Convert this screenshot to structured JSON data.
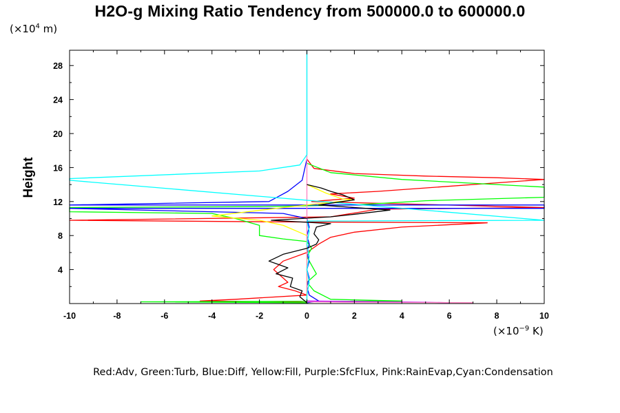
{
  "title": "H2O-g Mixing Ratio Tendency from 500000.0 to 600000.0",
  "y_unit_prefix": "(×10",
  "y_unit_exp": "4",
  "y_unit_suffix": " m)",
  "x_unit_prefix": "(×10",
  "x_unit_exp": "−9",
  "x_unit_suffix": " K)",
  "ylabel": "Height",
  "legend_text": "Red:Adv, Green:Turb, Blue:Diff, Yellow:Fill, Purple:SfcFlux, Pink:RainEvap,Cyan:Condensation",
  "chart_data": {
    "type": "line",
    "xlabel": "",
    "ylabel": "Height",
    "xlim": [
      -10,
      10
    ],
    "ylim": [
      0,
      29.8
    ],
    "x_ticks": [
      -10,
      -8,
      -6,
      -4,
      -2,
      0,
      2,
      4,
      6,
      8,
      10
    ],
    "x_tick_labels": [
      "-10",
      "-8",
      "-6",
      "-4",
      "-2",
      "0",
      "2",
      "4",
      "6",
      "8",
      "10"
    ],
    "y_ticks": [
      4,
      8,
      12,
      16,
      20,
      24,
      28
    ],
    "y_tick_labels": [
      "4",
      "8",
      "12",
      "16",
      "20",
      "24",
      "28"
    ],
    "grid": false,
    "series": [
      {
        "name": "Adv",
        "color": "#ff0000",
        "points": [
          [
            0,
            17.0
          ],
          [
            0.3,
            15.9
          ],
          [
            2,
            15.3
          ],
          [
            5,
            15.0
          ],
          [
            8,
            14.8
          ],
          [
            10,
            14.6
          ],
          [
            10,
            14.6
          ],
          [
            3,
            13.2
          ],
          [
            1,
            12.9
          ],
          [
            2,
            12.4
          ],
          [
            0.2,
            12.0
          ],
          [
            10,
            11.3
          ],
          [
            3,
            11.1
          ],
          [
            1,
            10.2
          ],
          [
            -10,
            9.8
          ],
          [
            -1,
            9.6
          ],
          [
            7.6,
            9.5
          ],
          [
            4,
            9.0
          ],
          [
            2,
            8.4
          ],
          [
            1,
            7.8
          ],
          [
            0.5,
            7.0
          ],
          [
            0,
            6.0
          ],
          [
            -1,
            5.0
          ],
          [
            -1.4,
            4.0
          ],
          [
            -1,
            3.0
          ],
          [
            -0.8,
            2.5
          ],
          [
            -1.2,
            2.0
          ],
          [
            -0.5,
            1.5
          ],
          [
            0,
            1.0
          ],
          [
            -3,
            0.5
          ],
          [
            -4.5,
            0.3
          ],
          [
            -0.5,
            0.2
          ],
          [
            0,
            0.1
          ]
        ]
      },
      {
        "name": "Turb",
        "color": "#00ff00",
        "points": [
          [
            0,
            16.5
          ],
          [
            1,
            15.4
          ],
          [
            4,
            14.6
          ],
          [
            8,
            14.0
          ],
          [
            10,
            13.7
          ],
          [
            10,
            12.5
          ],
          [
            5,
            12.1
          ],
          [
            2,
            11.6
          ],
          [
            -2,
            11.4
          ],
          [
            -10,
            11.3
          ],
          [
            -10,
            10.8
          ],
          [
            -4,
            10.6
          ],
          [
            -3,
            10.0
          ],
          [
            -2,
            9.2
          ],
          [
            -2,
            8.0
          ],
          [
            -1,
            7.6
          ],
          [
            0,
            7.3
          ],
          [
            0.2,
            6.5
          ],
          [
            0,
            5.5
          ],
          [
            0.2,
            4.5
          ],
          [
            0.4,
            3.5
          ],
          [
            0,
            2.5
          ],
          [
            0.3,
            1.5
          ],
          [
            1,
            0.5
          ],
          [
            4,
            0.3
          ],
          [
            -7,
            0.2
          ],
          [
            0,
            0.1
          ]
        ]
      },
      {
        "name": "Diff",
        "color": "#0000ff",
        "points": [
          [
            0,
            17.0
          ],
          [
            -0.2,
            14.5
          ],
          [
            -0.8,
            13.2
          ],
          [
            -1.2,
            12.6
          ],
          [
            -1.6,
            12.0
          ],
          [
            -10,
            11.6
          ],
          [
            10,
            11.6
          ],
          [
            10,
            11.2
          ],
          [
            -10,
            11.2
          ],
          [
            -1,
            10.6
          ],
          [
            0,
            10.0
          ],
          [
            0.1,
            9.0
          ],
          [
            0,
            8.0
          ],
          [
            0.1,
            7.0
          ],
          [
            0,
            6.0
          ],
          [
            0.1,
            5.0
          ],
          [
            0,
            4.0
          ],
          [
            0.1,
            3.0
          ],
          [
            0,
            2.0
          ],
          [
            0.1,
            1.0
          ],
          [
            0.5,
            0.3
          ],
          [
            0,
            0.1
          ]
        ]
      },
      {
        "name": "Fill",
        "color": "#ffff00",
        "points": [
          [
            0,
            14.0
          ],
          [
            0.8,
            13.0
          ],
          [
            1.5,
            12.3
          ],
          [
            2,
            12.2
          ],
          [
            -1,
            11.3
          ],
          [
            -4,
            10.3
          ],
          [
            -2,
            9.8
          ],
          [
            -1,
            9.2
          ],
          [
            0,
            8.0
          ],
          [
            0,
            7.0
          ],
          [
            0,
            0.1
          ]
        ]
      },
      {
        "name": "SfcFlux",
        "color": "#c000ff",
        "points": [
          [
            0,
            0.3
          ],
          [
            2,
            0.25
          ],
          [
            5,
            0.15
          ],
          [
            6,
            0.1
          ]
        ]
      },
      {
        "name": "RainEvap",
        "color": "#ff7fbf",
        "points": [
          [
            0,
            29.8
          ],
          [
            0,
            0.1
          ],
          [
            0,
            0.2
          ],
          [
            1.5,
            0.15
          ],
          [
            5,
            0.12
          ],
          [
            7,
            0.1
          ]
        ]
      },
      {
        "name": "Condensation",
        "color": "#00ffff",
        "points": [
          [
            0,
            29.8
          ],
          [
            0,
            17.5
          ],
          [
            -0.3,
            16.3
          ],
          [
            -2,
            15.6
          ],
          [
            -10,
            14.7
          ],
          [
            -10,
            14.5
          ],
          [
            10,
            9.8
          ],
          [
            0,
            9.7
          ],
          [
            0.1,
            8.5
          ],
          [
            0,
            7.0
          ],
          [
            0.1,
            5.5
          ],
          [
            0,
            4.0
          ],
          [
            0.1,
            2.5
          ],
          [
            0,
            1.0
          ],
          [
            0,
            0.1
          ]
        ]
      },
      {
        "name": "",
        "color": "#000000",
        "points": [
          [
            0,
            14.0
          ],
          [
            0.6,
            13.6
          ],
          [
            1.0,
            13.2
          ],
          [
            1.5,
            12.8
          ],
          [
            2.0,
            12.2
          ],
          [
            0.5,
            11.6
          ],
          [
            3.5,
            11.0
          ],
          [
            2.0,
            10.5
          ],
          [
            1.0,
            10.2
          ],
          [
            -1.5,
            9.8
          ],
          [
            1.0,
            9.4
          ],
          [
            0.4,
            9.0
          ],
          [
            0.3,
            8.2
          ],
          [
            0.5,
            7.5
          ],
          [
            0.4,
            7.0
          ],
          [
            0,
            6.5
          ],
          [
            -1.0,
            5.8
          ],
          [
            -1.6,
            5.0
          ],
          [
            -0.8,
            4.2
          ],
          [
            -1.3,
            3.5
          ],
          [
            -0.6,
            3.0
          ],
          [
            -0.7,
            2.0
          ],
          [
            -0.2,
            1.5
          ],
          [
            -0.3,
            0.8
          ],
          [
            0,
            0.1
          ]
        ]
      }
    ]
  }
}
